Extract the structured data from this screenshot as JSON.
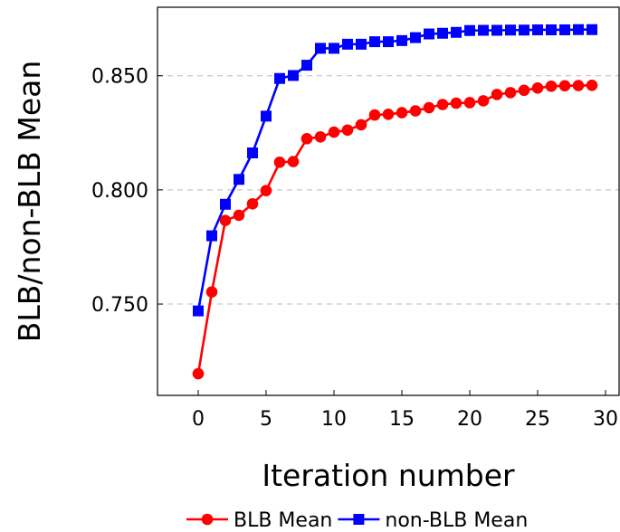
{
  "chart_data": {
    "type": "line",
    "title": "",
    "xlabel": "Iteration number",
    "ylabel": "BLB/non-BLB Mean",
    "xlim": [
      -3,
      31
    ],
    "ylim": [
      0.71,
      0.88
    ],
    "xticks": [
      0,
      5,
      10,
      15,
      20,
      25,
      30
    ],
    "yticks": [
      0.75,
      0.8,
      0.85
    ],
    "xtick_labels": [
      "0",
      "5",
      "10",
      "15",
      "20",
      "25",
      "30"
    ],
    "ytick_labels": [
      "0.750",
      "0.800",
      "0.850"
    ],
    "grid": "horizontal dashed",
    "legend_position": "bottom",
    "x": [
      0,
      1,
      2,
      3,
      4,
      5,
      6,
      7,
      8,
      9,
      10,
      11,
      12,
      13,
      14,
      15,
      16,
      17,
      18,
      19,
      20,
      21,
      22,
      23,
      24,
      25,
      26,
      27,
      28,
      29
    ],
    "series": [
      {
        "name": "BLB Mean",
        "color": "#ff0000",
        "marker": "circle",
        "values": [
          0.7195,
          0.7553,
          0.7866,
          0.7889,
          0.7939,
          0.7997,
          0.8121,
          0.8124,
          0.8224,
          0.8232,
          0.8253,
          0.8262,
          0.8285,
          0.8328,
          0.8331,
          0.8338,
          0.8346,
          0.836,
          0.8374,
          0.838,
          0.8382,
          0.839,
          0.8418,
          0.8426,
          0.8436,
          0.8446,
          0.8454,
          0.8456,
          0.8457,
          0.8458
        ]
      },
      {
        "name": "non-BLB Mean",
        "color": "#0000ff",
        "marker": "square",
        "values": [
          0.747,
          0.7799,
          0.7937,
          0.8046,
          0.8162,
          0.8323,
          0.8488,
          0.8501,
          0.8546,
          0.862,
          0.862,
          0.8638,
          0.8638,
          0.8649,
          0.8649,
          0.8654,
          0.8667,
          0.8683,
          0.8686,
          0.869,
          0.8698,
          0.8699,
          0.8699,
          0.87,
          0.87,
          0.8701,
          0.8701,
          0.8701,
          0.8702,
          0.8702
        ]
      }
    ]
  }
}
